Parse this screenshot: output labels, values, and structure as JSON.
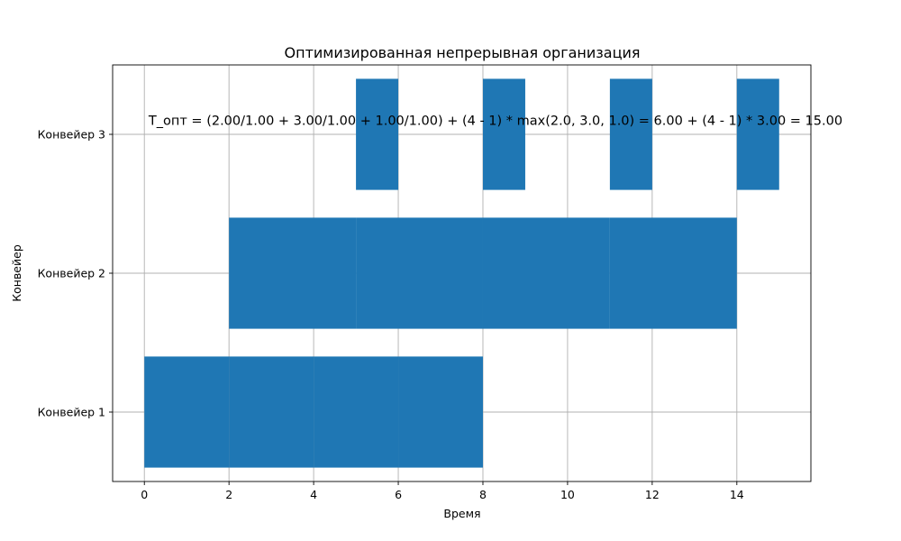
{
  "chart_data": {
    "type": "bar",
    "orientation": "horizontal",
    "title": "Оптимизированная непрерывная организация",
    "xlabel": "Время",
    "ylabel": "Конвейер",
    "xlim": [
      -0.75,
      15.75
    ],
    "ylim": [
      0.5,
      3.5
    ],
    "x_ticks": [
      0,
      2,
      4,
      6,
      8,
      10,
      12,
      14
    ],
    "categories": [
      "Конвейер 1",
      "Конвейер 2",
      "Конвейер 3"
    ],
    "grid": true,
    "bar_color": "#1f77b4",
    "series": [
      {
        "category": "Конвейер 1",
        "segments": [
          [
            0,
            2
          ],
          [
            2,
            4
          ],
          [
            4,
            6
          ],
          [
            6,
            8
          ]
        ]
      },
      {
        "category": "Конвейер 2",
        "segments": [
          [
            2,
            5
          ],
          [
            5,
            8
          ],
          [
            8,
            11
          ],
          [
            11,
            14
          ]
        ]
      },
      {
        "category": "Конвейер 3",
        "segments": [
          [
            5,
            6
          ],
          [
            8,
            9
          ],
          [
            11,
            12
          ],
          [
            14,
            15
          ]
        ]
      }
    ],
    "annotation": {
      "text": "T_опт = (2.00/1.00 + 3.00/1.00 + 1.00/1.00) + (4 - 1) * max(2.0, 3.0, 1.0) = 6.00 + (4 - 1) * 3.00 = 15.00",
      "x": 0.1,
      "y": 3.1
    }
  }
}
